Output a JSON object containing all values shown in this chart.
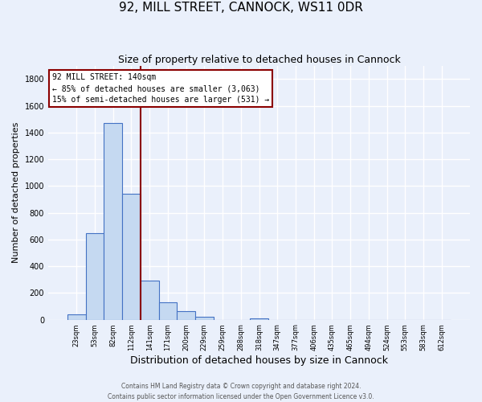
{
  "title": "92, MILL STREET, CANNOCK, WS11 0DR",
  "subtitle": "Size of property relative to detached houses in Cannock",
  "xlabel": "Distribution of detached houses by size in Cannock",
  "ylabel": "Number of detached properties",
  "footer_line1": "Contains HM Land Registry data © Crown copyright and database right 2024.",
  "footer_line2": "Contains public sector information licensed under the Open Government Licence v3.0.",
  "bin_labels": [
    "23sqm",
    "53sqm",
    "82sqm",
    "112sqm",
    "141sqm",
    "171sqm",
    "200sqm",
    "229sqm",
    "259sqm",
    "288sqm",
    "318sqm",
    "347sqm",
    "377sqm",
    "406sqm",
    "435sqm",
    "465sqm",
    "494sqm",
    "524sqm",
    "553sqm",
    "583sqm",
    "612sqm"
  ],
  "bar_values": [
    40,
    650,
    1470,
    940,
    295,
    130,
    65,
    22,
    0,
    0,
    10,
    0,
    0,
    0,
    0,
    0,
    0,
    0,
    0,
    0,
    0
  ],
  "bar_color": "#c5d9f1",
  "bar_edge_color": "#4472c4",
  "vline_color": "#8b0000",
  "annotation_title": "92 MILL STREET: 140sqm",
  "annotation_line1": "← 85% of detached houses are smaller (3,063)",
  "annotation_line2": "15% of semi-detached houses are larger (531) →",
  "annotation_box_color": "#ffffff",
  "annotation_box_edge_color": "#8b0000",
  "ylim": [
    0,
    1900
  ],
  "yticks": [
    0,
    200,
    400,
    600,
    800,
    1000,
    1200,
    1400,
    1600,
    1800
  ],
  "bg_color": "#eaf0fb",
  "grid_color": "#ffffff",
  "title_fontsize": 11,
  "subtitle_fontsize": 9,
  "ylabel_fontsize": 8,
  "xlabel_fontsize": 9,
  "tick_fontsize": 6,
  "footer_fontsize": 5.5,
  "annotation_fontsize": 7
}
